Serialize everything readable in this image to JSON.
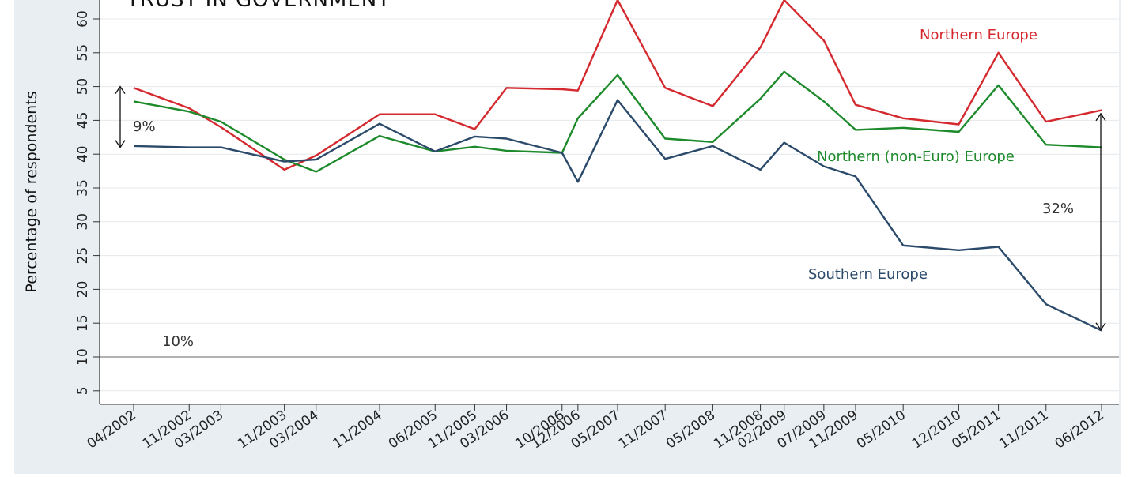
{
  "chart_data": {
    "type": "line",
    "title": "TRUST IN GOVERNMENT",
    "ylabel": "Percentage of respondents",
    "ylim": [
      3,
      63
    ],
    "yticks": [
      5,
      10,
      15,
      20,
      25,
      30,
      35,
      40,
      45,
      50,
      55,
      60
    ],
    "grid": true,
    "x_labels": [
      "04/2002",
      "11/2002",
      "03/2003",
      "11/2003",
      "03/2004",
      "11/2004",
      "06/2005",
      "11/2005",
      "03/2006",
      "10/2006",
      "12/2006",
      "05/2007",
      "11/2007",
      "05/2008",
      "11/2008",
      "02/2009",
      "07/2009",
      "11/2009",
      "05/2010",
      "12/2010",
      "05/2011",
      "11/2011",
      "06/2012"
    ],
    "x_dates": [
      "2002-04",
      "2002-11",
      "2003-03",
      "2003-11",
      "2004-03",
      "2004-11",
      "2005-06",
      "2005-11",
      "2006-03",
      "2006-10",
      "2006-12",
      "2007-05",
      "2007-11",
      "2008-05",
      "2008-11",
      "2009-02",
      "2009-07",
      "2009-11",
      "2010-05",
      "2010-12",
      "2011-05",
      "2011-11",
      "2012-06"
    ],
    "series": [
      {
        "name": "Northern Europe",
        "color": "#d42a2f",
        "values": [
          49.8,
          46.8,
          44,
          37.7,
          39.8,
          45.9,
          45.9,
          43.7,
          49.8,
          49.6,
          49.4,
          62.8,
          49.8,
          47.1,
          55.8,
          62.8,
          56.8,
          47.3,
          45.3,
          44.4,
          55,
          44.8,
          46.5
        ]
      },
      {
        "name": "Northern (non-Euro) Europe",
        "color": "#1d8a2b",
        "values": [
          47.8,
          46.3,
          44.8,
          39.2,
          37.4,
          42.7,
          40.4,
          41.1,
          40.5,
          40.2,
          45.3,
          51.7,
          42.3,
          41.8,
          48.2,
          52.2,
          47.8,
          43.6,
          43.9,
          43.3,
          50.2,
          41.4,
          41
        ]
      },
      {
        "name": "Southern Europe",
        "color": "#2b4a6a",
        "values": [
          41.2,
          41,
          41,
          38.9,
          39.2,
          44.5,
          40.4,
          42.6,
          42.3,
          40.2,
          35.9,
          48,
          39.3,
          41.2,
          37.7,
          41.7,
          38.2,
          36.7,
          26.5,
          25.8,
          26.3,
          17.8,
          13.9
        ]
      }
    ],
    "reference_line": {
      "value": 10,
      "label": "10%",
      "color": "#7a7a7a"
    },
    "annotations": [
      {
        "text": "9%",
        "from": 50,
        "to": 41,
        "at": "2002-04"
      },
      {
        "text": "32%",
        "from": 46,
        "to": 14,
        "at": "2012-06"
      }
    ]
  }
}
